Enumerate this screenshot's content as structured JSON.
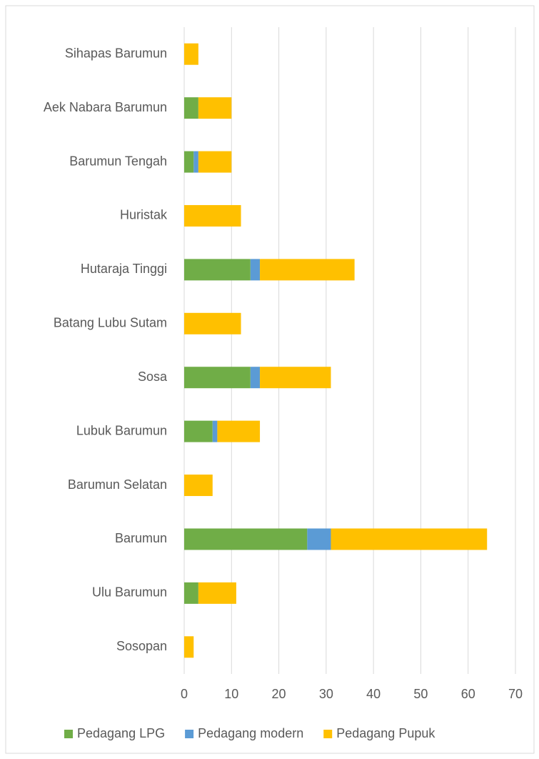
{
  "chart_data": {
    "type": "bar",
    "orientation": "horizontal",
    "stacked": true,
    "categories": [
      "Sihapas Barumun",
      "Aek Nabara Barumun",
      "Barumun Tengah",
      "Huristak",
      "Hutaraja Tinggi",
      "Batang Lubu Sutam",
      "Sosa",
      "Lubuk Barumun",
      "Barumun Selatan",
      "Barumun",
      "Ulu Barumun",
      "Sosopan"
    ],
    "series": [
      {
        "name": "Pedagang LPG",
        "color": "#70ad47",
        "values": [
          0,
          3,
          2,
          0,
          14,
          0,
          14,
          6,
          0,
          26,
          3,
          0
        ]
      },
      {
        "name": "Pedagang modern",
        "color": "#5b9bd5",
        "values": [
          0,
          0,
          1,
          0,
          2,
          0,
          2,
          1,
          0,
          5,
          0,
          0
        ]
      },
      {
        "name": "Pedagang Pupuk",
        "color": "#ffc000",
        "values": [
          3,
          7,
          7,
          12,
          20,
          12,
          15,
          9,
          6,
          33,
          8,
          2
        ]
      }
    ],
    "xlim": [
      0,
      70
    ],
    "xticks": [
      0,
      10,
      20,
      30,
      40,
      50,
      60,
      70
    ],
    "grid": true,
    "legend": "bottom"
  }
}
